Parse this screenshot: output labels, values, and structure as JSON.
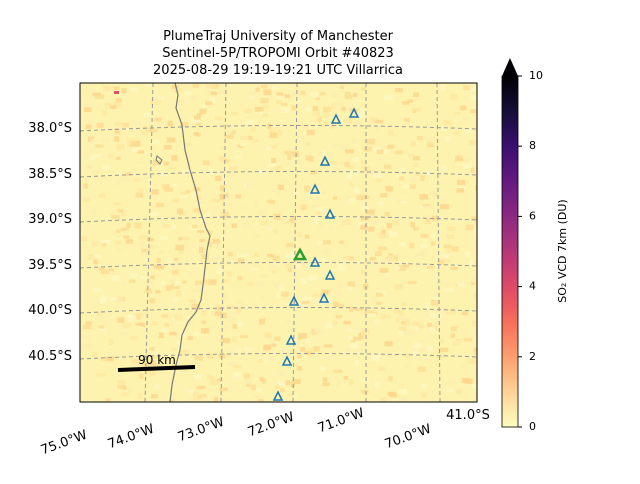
{
  "title": [
    "PlumeTraj    University of Manchester",
    "Sentinel-5P/TROPOMI Orbit #40823",
    "2025-08-29   19:19-19:21 UTC   Villarrica"
  ],
  "map": {
    "lat_labels": [
      "38.0°S",
      "38.5°S",
      "39.0°S",
      "39.5°S",
      "40.0°S",
      "40.5°S"
    ],
    "lon_labels": [
      "75.0°W",
      "74.0°W",
      "73.0°W",
      "72.0°W",
      "71.0°W",
      "70.0°W"
    ],
    "corner_label": "41.0°S",
    "scale_bar": "90 km"
  },
  "colorbar": {
    "label": "SO₂ VCD 7km (DU)",
    "lim": [
      0,
      10
    ],
    "ticks": [
      0,
      2,
      4,
      6,
      8,
      10
    ]
  }
}
